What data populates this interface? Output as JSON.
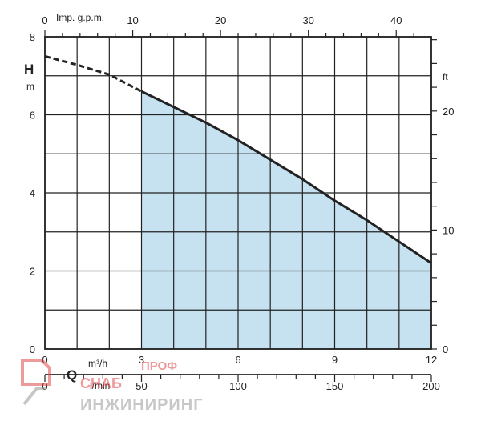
{
  "chart_data": {
    "type": "line",
    "title": "",
    "y_axis": {
      "symbol": "H",
      "unit": "m",
      "ylim": [
        0,
        8
      ],
      "ticks": [
        "0",
        "2",
        "4",
        "6",
        "8"
      ]
    },
    "y_axis_right": {
      "unit": "ft",
      "ticks": [
        "0",
        "10",
        "20"
      ]
    },
    "x_axis_m3h": {
      "unit": "m³/h",
      "xlim": [
        0,
        12
      ],
      "ticks": [
        "0",
        "3",
        "6",
        "9",
        "12"
      ]
    },
    "x_axis_top": {
      "unit": "Imp. g.p.m.",
      "ticks": [
        "0",
        "10",
        "20",
        "30",
        "40"
      ]
    },
    "x_axis_lmin": {
      "symbol": "Q",
      "unit": "l/min",
      "ticks": [
        "0",
        "50",
        "100",
        "150",
        "200"
      ]
    },
    "grid": true,
    "series": [
      {
        "x": [
          0,
          1,
          2,
          3,
          4,
          5,
          6,
          7,
          8,
          9,
          10,
          11,
          12
        ],
        "y": [
          7.5,
          7.28,
          7.03,
          6.6,
          6.2,
          5.8,
          5.35,
          4.85,
          4.35,
          3.8,
          3.3,
          2.75,
          2.2
        ],
        "dashed_until_x": 3
      }
    ],
    "operating_range": [
      3,
      12
    ],
    "colors": {
      "curve": "#222222",
      "fill": "#c6e2f1",
      "grid": "#222222"
    }
  },
  "watermark": {
    "top": "ПРОФ",
    "middle": "СНАБ",
    "bottom": "ИНЖИНИРИНГ"
  }
}
